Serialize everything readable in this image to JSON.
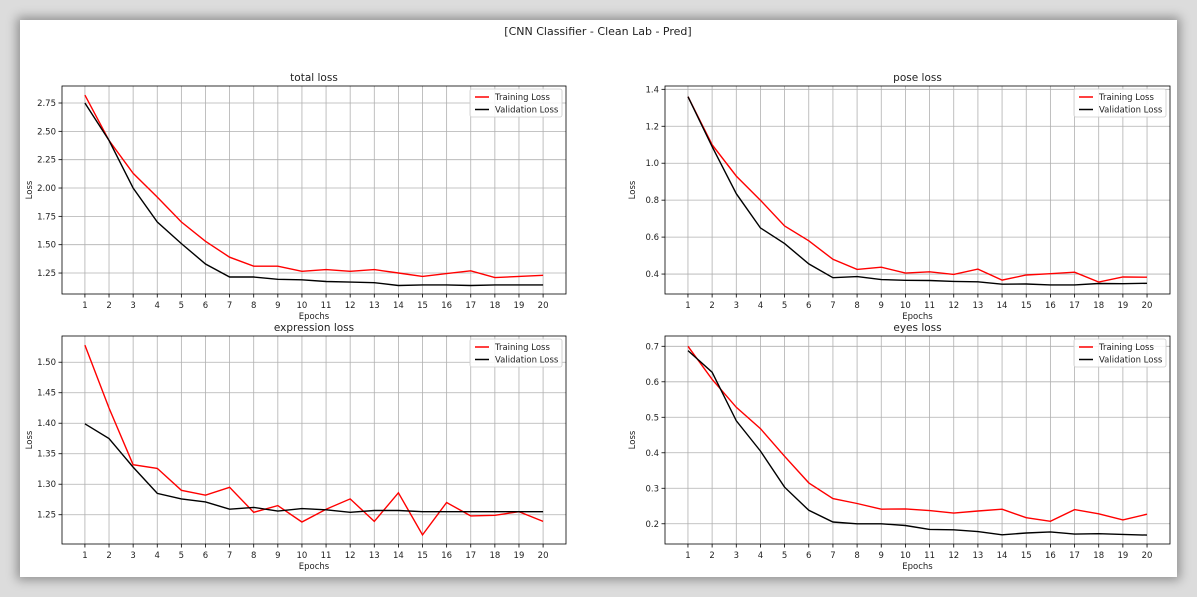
{
  "figure_title": "[CNN Classifier - Clean Lab - Pred]",
  "colors": {
    "training": "#ff0000",
    "validation": "#000000",
    "grid": "#b0b0b0"
  },
  "chart_data": [
    {
      "type": "line",
      "title": "total loss",
      "xlabel": "Epochs",
      "ylabel": "Loss",
      "x": [
        1,
        2,
        3,
        4,
        5,
        6,
        7,
        8,
        9,
        10,
        11,
        12,
        13,
        14,
        15,
        16,
        17,
        18,
        19,
        20
      ],
      "ylim": [
        1.065,
        2.9
      ],
      "yticks": [
        1.25,
        1.5,
        1.75,
        2.0,
        2.25,
        2.5,
        2.75
      ],
      "ytick_decimals": 2,
      "grid": true,
      "legend": "top-right",
      "series": [
        {
          "name": "Training Loss",
          "color": "#ff0000",
          "values": [
            2.82,
            2.42,
            2.13,
            1.92,
            1.7,
            1.53,
            1.39,
            1.31,
            1.31,
            1.265,
            1.28,
            1.265,
            1.28,
            1.25,
            1.22,
            1.245,
            1.27,
            1.21,
            1.22,
            1.23
          ]
        },
        {
          "name": "Validation Loss",
          "color": "#000000",
          "values": [
            2.75,
            2.42,
            2.0,
            1.7,
            1.51,
            1.33,
            1.215,
            1.215,
            1.195,
            1.19,
            1.175,
            1.17,
            1.165,
            1.14,
            1.145,
            1.145,
            1.14,
            1.145,
            1.145,
            1.145
          ]
        }
      ]
    },
    {
      "type": "line",
      "title": "pose loss",
      "xlabel": "Epochs",
      "ylabel": "Loss",
      "x": [
        1,
        2,
        3,
        4,
        5,
        6,
        7,
        8,
        9,
        10,
        11,
        12,
        13,
        14,
        15,
        16,
        17,
        18,
        19,
        20
      ],
      "ylim": [
        0.292,
        1.418
      ],
      "yticks": [
        0.4,
        0.6,
        0.8,
        1.0,
        1.2,
        1.4
      ],
      "ytick_decimals": 1,
      "grid": true,
      "legend": "top-right",
      "series": [
        {
          "name": "Training Loss",
          "color": "#ff0000",
          "values": [
            1.36,
            1.1,
            0.93,
            0.8,
            0.66,
            0.58,
            0.48,
            0.425,
            0.437,
            0.405,
            0.412,
            0.398,
            0.427,
            0.367,
            0.395,
            0.402,
            0.41,
            0.357,
            0.384,
            0.383
          ]
        },
        {
          "name": "Validation Loss",
          "color": "#000000",
          "values": [
            1.36,
            1.09,
            0.835,
            0.65,
            0.565,
            0.455,
            0.38,
            0.386,
            0.37,
            0.366,
            0.365,
            0.36,
            0.358,
            0.345,
            0.346,
            0.341,
            0.341,
            0.349,
            0.348,
            0.35
          ]
        }
      ]
    },
    {
      "type": "line",
      "title": "expression loss",
      "xlabel": "Epochs",
      "ylabel": "Loss",
      "x": [
        1,
        2,
        3,
        4,
        5,
        6,
        7,
        8,
        9,
        10,
        11,
        12,
        13,
        14,
        15,
        16,
        17,
        18,
        19,
        20
      ],
      "ylim": [
        1.202,
        1.543
      ],
      "yticks": [
        1.25,
        1.3,
        1.35,
        1.4,
        1.45,
        1.5
      ],
      "ytick_decimals": 2,
      "grid": true,
      "legend": "top-right",
      "series": [
        {
          "name": "Training Loss",
          "color": "#ff0000",
          "values": [
            1.528,
            1.425,
            1.332,
            1.326,
            1.29,
            1.282,
            1.295,
            1.254,
            1.265,
            1.238,
            1.259,
            1.276,
            1.239,
            1.286,
            1.217,
            1.27,
            1.248,
            1.249,
            1.255,
            1.239
          ]
        },
        {
          "name": "Validation Loss",
          "color": "#000000",
          "values": [
            1.399,
            1.375,
            1.328,
            1.285,
            1.276,
            1.271,
            1.259,
            1.262,
            1.256,
            1.26,
            1.258,
            1.254,
            1.257,
            1.257,
            1.255,
            1.255,
            1.255,
            1.255,
            1.255,
            1.255
          ]
        }
      ]
    },
    {
      "type": "line",
      "title": "eyes loss",
      "xlabel": "Epochs",
      "ylabel": "Loss",
      "x": [
        1,
        2,
        3,
        4,
        5,
        6,
        7,
        8,
        9,
        10,
        11,
        12,
        13,
        14,
        15,
        16,
        17,
        18,
        19,
        20
      ],
      "ylim": [
        0.143,
        0.729
      ],
      "yticks": [
        0.2,
        0.3,
        0.4,
        0.5,
        0.6,
        0.7
      ],
      "ytick_decimals": 1,
      "grid": true,
      "legend": "top-right",
      "series": [
        {
          "name": "Training Loss",
          "color": "#ff0000",
          "values": [
            0.7,
            0.607,
            0.528,
            0.468,
            0.39,
            0.315,
            0.271,
            0.257,
            0.241,
            0.242,
            0.237,
            0.23,
            0.236,
            0.241,
            0.217,
            0.207,
            0.24,
            0.228,
            0.211,
            0.227
          ]
        },
        {
          "name": "Validation Loss",
          "color": "#000000",
          "values": [
            0.688,
            0.627,
            0.49,
            0.405,
            0.303,
            0.238,
            0.205,
            0.2,
            0.2,
            0.195,
            0.184,
            0.183,
            0.178,
            0.169,
            0.174,
            0.177,
            0.171,
            0.172,
            0.17,
            0.168
          ]
        }
      ]
    }
  ]
}
